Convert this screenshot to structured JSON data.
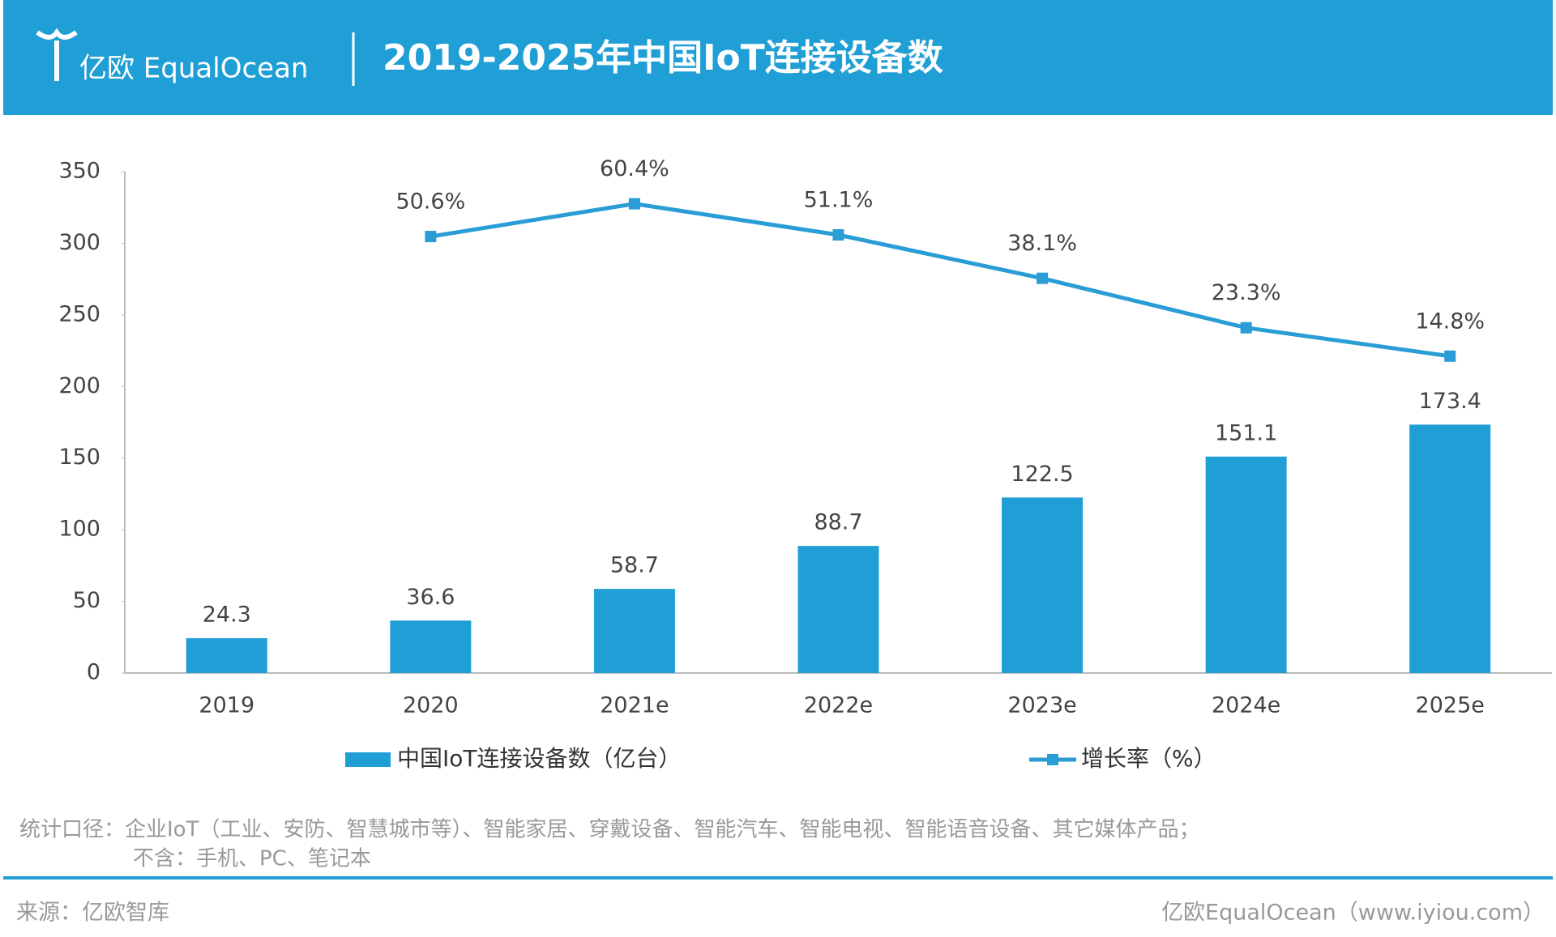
{
  "header": {
    "logo": "亿欧 EqualOcean"
  },
  "chart_data": {
    "type": "bar",
    "title": "2019-2025年中国IoT连接设备数",
    "categories": [
      "2019",
      "2020",
      "2021e",
      "2022e",
      "2023e",
      "2024e",
      "2025e"
    ],
    "series": [
      {
        "name": "中国IoT连接设备数（亿台）",
        "type": "bar",
        "color": "#1f9fd5",
        "values": [
          24.3,
          36.6,
          58.7,
          88.7,
          122.5,
          151.1,
          173.4
        ]
      },
      {
        "name": "增长率（%）",
        "type": "line",
        "axis": "y2",
        "color": "#2a9dd6",
        "values": [
          null,
          50.6,
          60.4,
          51.1,
          38.1,
          23.3,
          14.8
        ],
        "value_labels": [
          null,
          "50.6%",
          "60.4%",
          "51.1%",
          "38.1%",
          "23.3%",
          "14.8%"
        ]
      }
    ],
    "ylim": [
      0,
      350
    ],
    "yticks": [
      0,
      50,
      100,
      150,
      200,
      250,
      300,
      350
    ],
    "y2lim": [
      -80,
      70
    ],
    "grid": false
  },
  "notes": [
    "统计口径：企业IoT（工业、安防、智慧城市等）、智能家居、穿戴设备、智能汽车、智能电视、智能语音设备、其它媒体产品；",
    "不含：手机、PC、笔记本"
  ],
  "source": "来源：亿欧智库",
  "credit": "亿欧EqualOcean（www.iyiou.com）"
}
